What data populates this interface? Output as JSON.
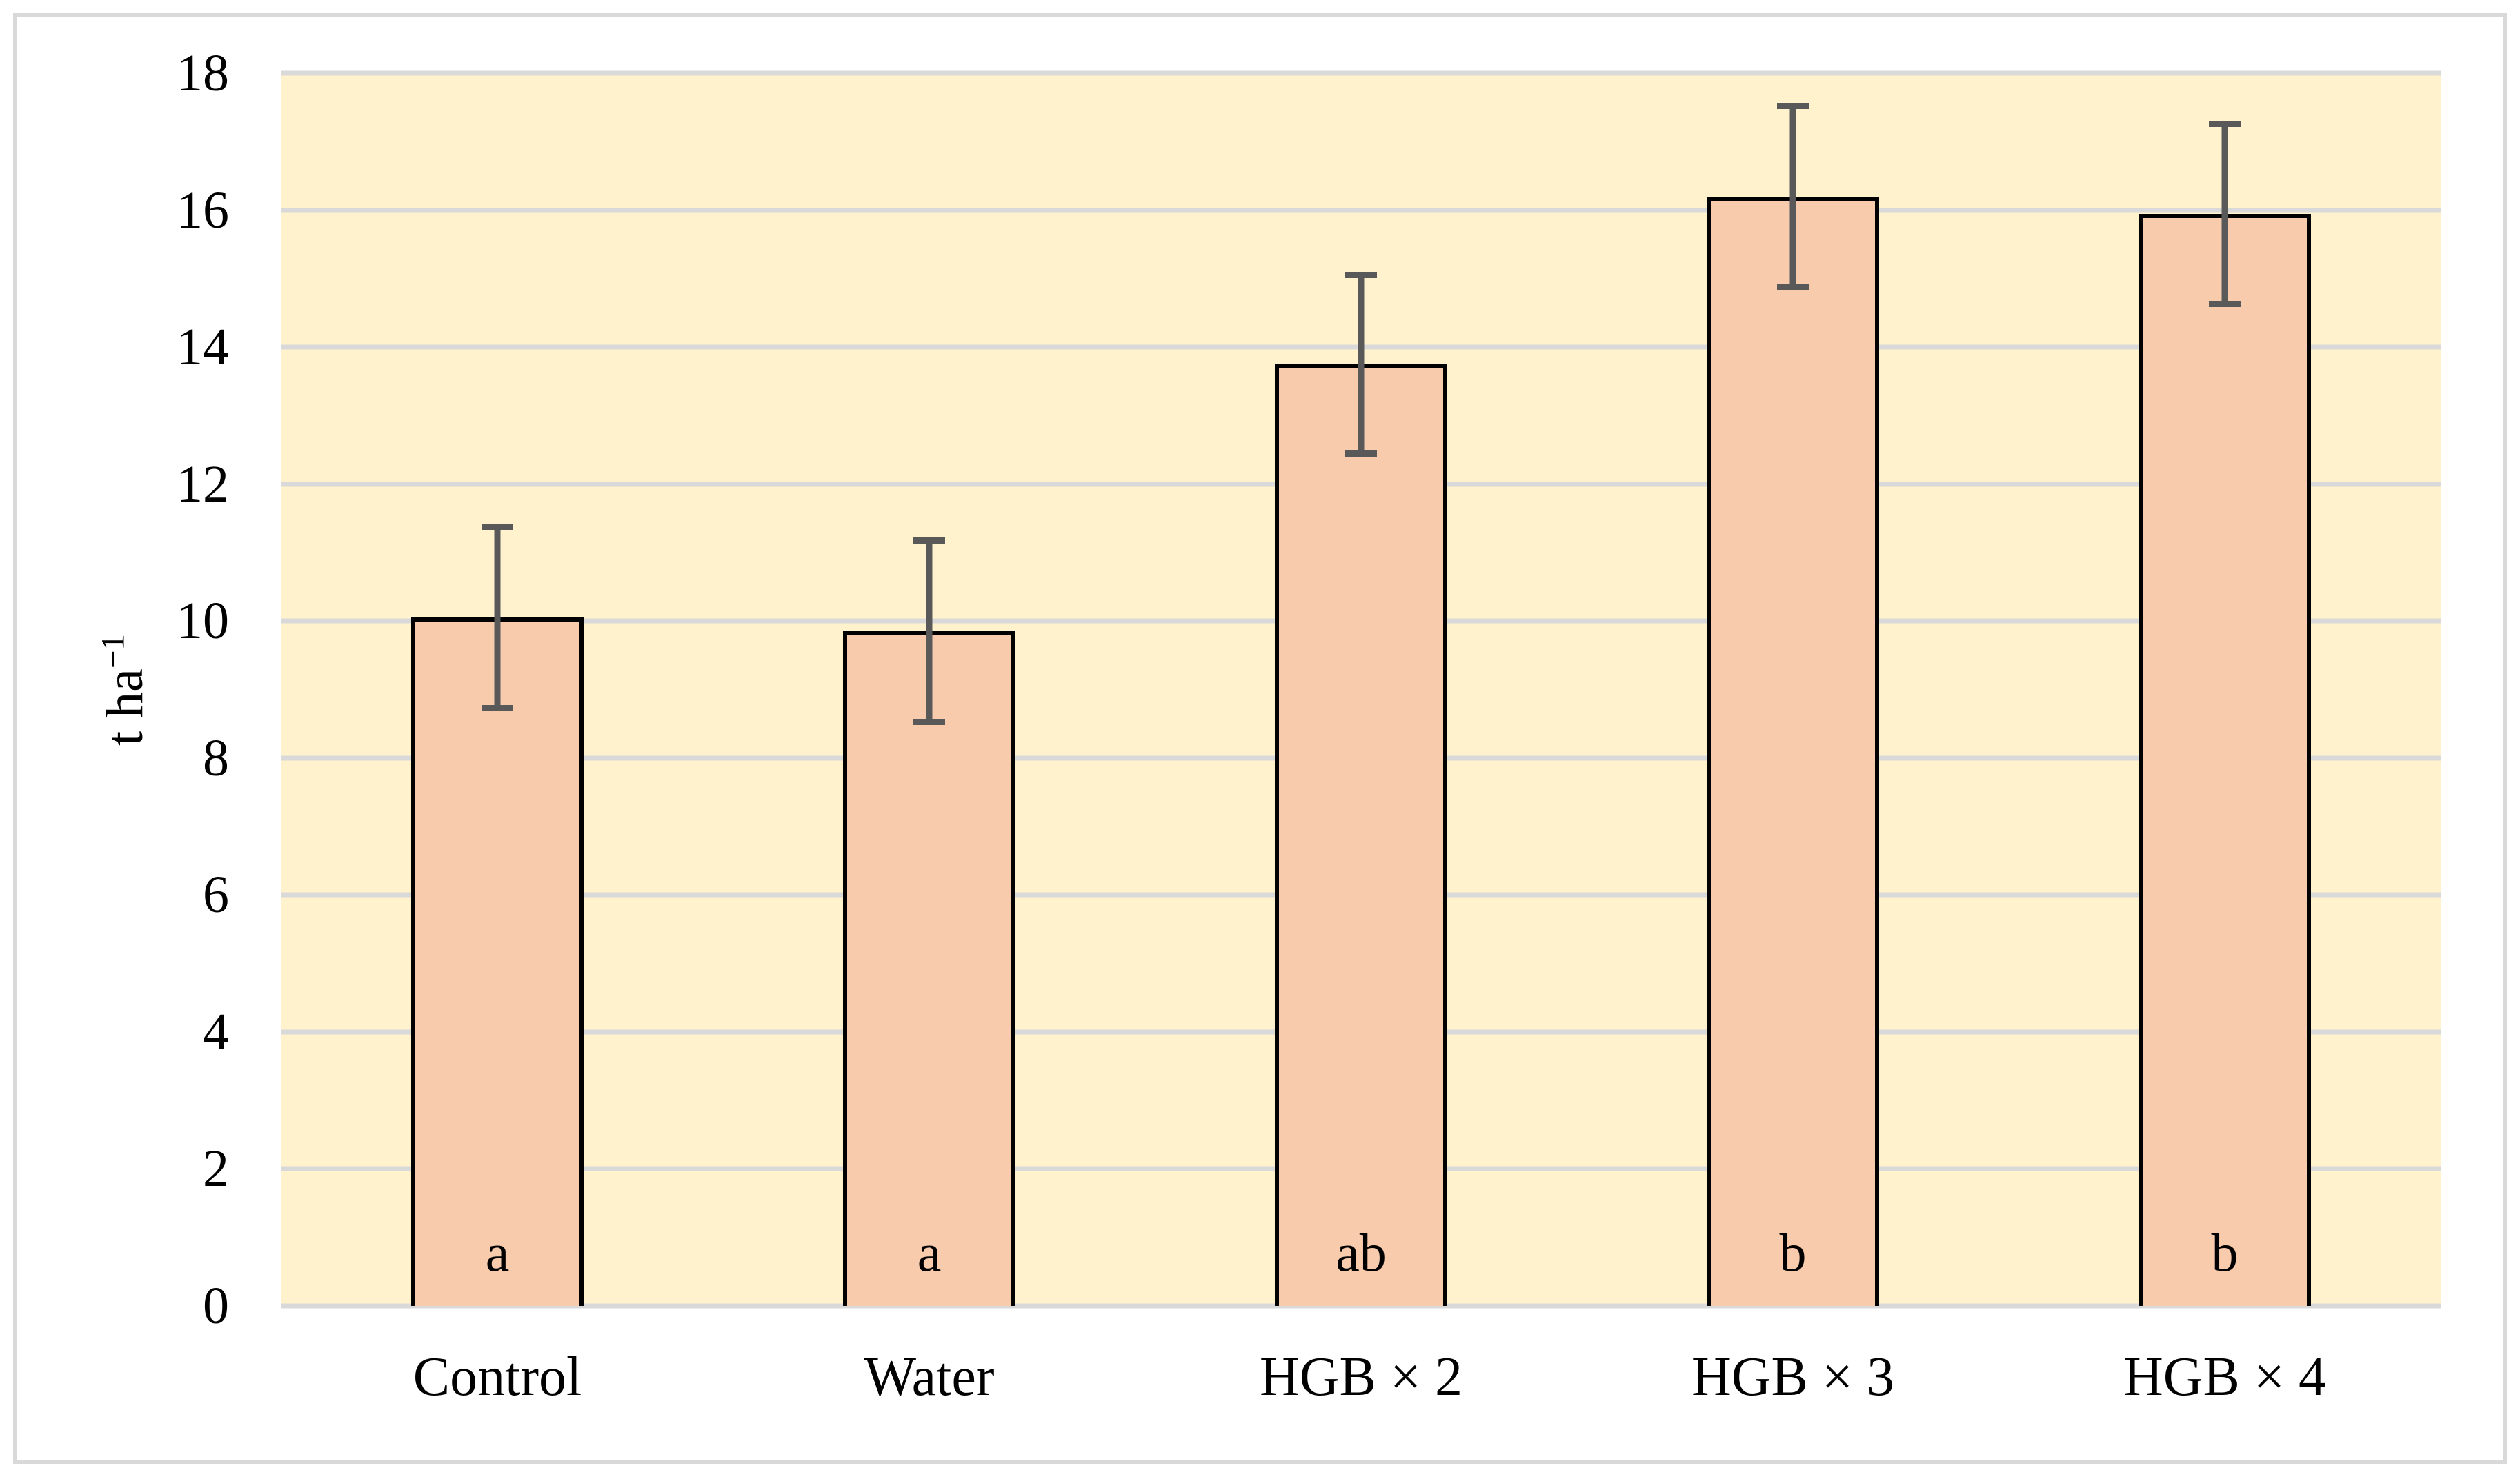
{
  "chart_data": {
    "type": "bar",
    "title": "",
    "categories": [
      "Control",
      "Water",
      "HGB × 2",
      "HGB × 3",
      "HGB × 4"
    ],
    "values": [
      10.05,
      9.85,
      13.75,
      16.2,
      15.95
    ],
    "error_bars": [
      1.37,
      1.37,
      1.35,
      1.37,
      1.36
    ],
    "significance_letters": [
      "a",
      "a",
      "ab",
      "b",
      "b"
    ],
    "xlabel": "",
    "ylabel": "t ha⁻¹",
    "ylabel_text": "t ha",
    "ylabel_superscript": "−1",
    "ylim": [
      0,
      18
    ],
    "yticks": [
      "0",
      "2",
      "4",
      "6",
      "8",
      "10",
      "12",
      "14",
      "16",
      "18"
    ],
    "grid": true,
    "legend_position": "none",
    "colors": {
      "bar_fill": "#F8CBAD",
      "bar_border": "#000000",
      "error_bar": "#595959",
      "plot_background": "#FFF2CC",
      "gridline": "#D9D9D9",
      "outer_border": "#D9D9D9",
      "text": "#000000"
    }
  }
}
